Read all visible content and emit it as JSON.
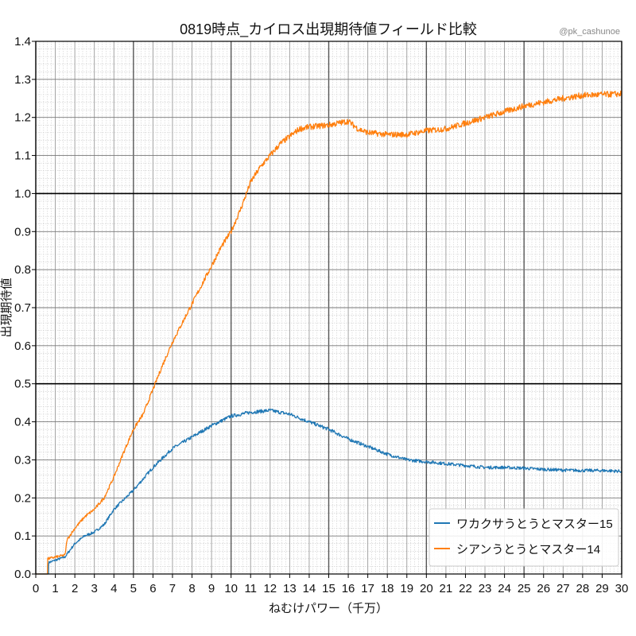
{
  "chart_data": {
    "type": "line",
    "title": "0819時点_カイロス出現期待値フィールド比較",
    "credit": "@pk_cashunoe",
    "xlabel": "ねむけパワー（千万）",
    "ylabel": "出現期待値",
    "xlim": [
      0,
      30
    ],
    "ylim": [
      0,
      1.4
    ],
    "xticks": [
      0,
      1,
      2,
      3,
      4,
      5,
      6,
      7,
      8,
      9,
      10,
      11,
      12,
      13,
      14,
      15,
      16,
      17,
      18,
      19,
      20,
      21,
      22,
      23,
      24,
      25,
      26,
      27,
      28,
      29,
      30
    ],
    "yticks": [
      "0.0",
      "0.1",
      "0.2",
      "0.3",
      "0.4",
      "0.5",
      "0.6",
      "0.7",
      "0.8",
      "0.9",
      "1.0",
      "1.1",
      "1.2",
      "1.3",
      "1.4"
    ],
    "grid": true,
    "legend_position": "bottom-right",
    "series": [
      {
        "name": "ワカクサうとうとマスター15",
        "color": "#1f77b4",
        "x": [
          0,
          0.65,
          0.66,
          1.5,
          2,
          2.5,
          3,
          3.5,
          4,
          5,
          6,
          7,
          8,
          9,
          10,
          11,
          12,
          13,
          14,
          15,
          16,
          17,
          18,
          19,
          20,
          21,
          22,
          23,
          24,
          25,
          26,
          27,
          28,
          29,
          30
        ],
        "y": [
          0,
          0,
          0.03,
          0.045,
          0.08,
          0.1,
          0.11,
          0.13,
          0.17,
          0.22,
          0.28,
          0.33,
          0.36,
          0.39,
          0.415,
          0.425,
          0.43,
          0.42,
          0.4,
          0.38,
          0.355,
          0.335,
          0.315,
          0.3,
          0.295,
          0.29,
          0.285,
          0.28,
          0.28,
          0.278,
          0.275,
          0.273,
          0.272,
          0.272,
          0.27
        ]
      },
      {
        "name": "シアンうとうとマスター14",
        "color": "#ff7f0e",
        "x": [
          0,
          0.6,
          0.61,
          1.5,
          1.6,
          2,
          2.5,
          3,
          3.5,
          4,
          4.5,
          5,
          5.5,
          6,
          6.5,
          7,
          7.5,
          8,
          8.5,
          9,
          9.5,
          10,
          10.5,
          11,
          11.5,
          12,
          12.5,
          13,
          13.5,
          14,
          15,
          16,
          16.5,
          17,
          18,
          19,
          20,
          21,
          22,
          23,
          24,
          25,
          26,
          27,
          28,
          29,
          30
        ],
        "y": [
          0,
          0,
          0.04,
          0.05,
          0.09,
          0.12,
          0.15,
          0.17,
          0.2,
          0.255,
          0.32,
          0.38,
          0.42,
          0.485,
          0.55,
          0.61,
          0.66,
          0.71,
          0.76,
          0.81,
          0.86,
          0.9,
          0.96,
          1.03,
          1.07,
          1.1,
          1.13,
          1.15,
          1.17,
          1.175,
          1.18,
          1.19,
          1.17,
          1.16,
          1.155,
          1.155,
          1.165,
          1.17,
          1.185,
          1.2,
          1.215,
          1.23,
          1.24,
          1.25,
          1.258,
          1.26,
          1.262
        ]
      }
    ]
  }
}
